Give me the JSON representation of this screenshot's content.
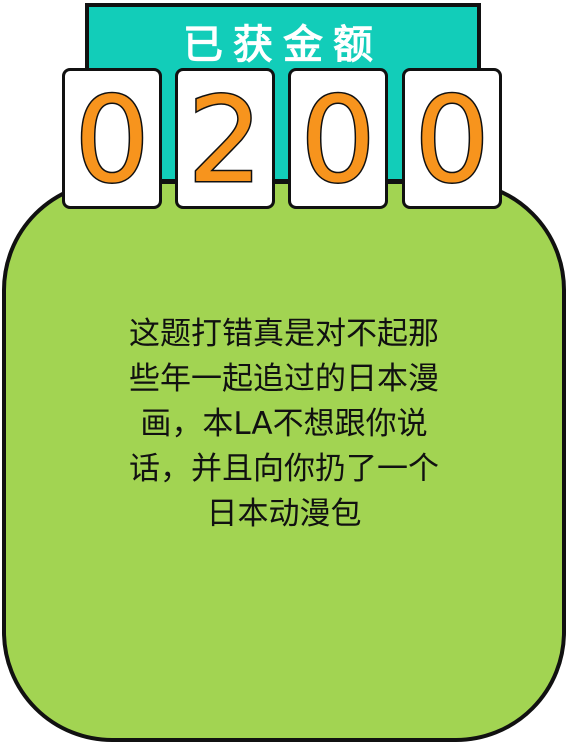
{
  "title": "已获金额",
  "amount_digits": [
    "0",
    "2",
    "0",
    "0"
  ],
  "message_lines": [
    "这题打错真是对不起那",
    "些年一起追过的日本漫",
    "画，本LA不想跟你说",
    "话，并且向你扔了一个",
    "日本动漫包"
  ],
  "colors": {
    "banner": "#12cdb9",
    "card": "#a2d452",
    "digit": "#f7941d",
    "outline": "#111111"
  }
}
